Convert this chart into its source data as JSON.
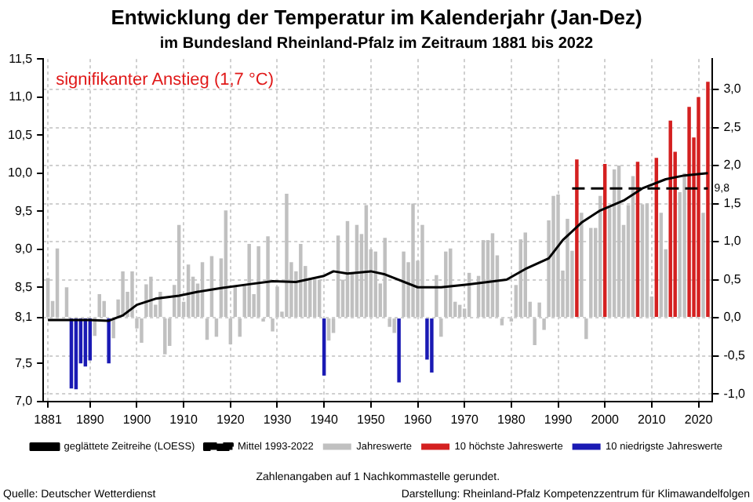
{
  "chart_data": {
    "type": "bar",
    "title": "Entwicklung der Temperatur im Kalenderjahr (Jan-Dez)",
    "subtitle": "im Bundesland Rheinland-Pfalz im Zeitraum 1881 bis 2022",
    "x": [
      1881,
      1882,
      1883,
      1884,
      1885,
      1886,
      1887,
      1888,
      1889,
      1890,
      1891,
      1892,
      1893,
      1894,
      1895,
      1896,
      1897,
      1898,
      1899,
      1900,
      1901,
      1902,
      1903,
      1904,
      1905,
      1906,
      1907,
      1908,
      1909,
      1910,
      1911,
      1912,
      1913,
      1914,
      1915,
      1916,
      1917,
      1918,
      1919,
      1920,
      1921,
      1922,
      1923,
      1924,
      1925,
      1926,
      1927,
      1928,
      1929,
      1930,
      1931,
      1932,
      1933,
      1934,
      1935,
      1936,
      1937,
      1938,
      1939,
      1940,
      1941,
      1942,
      1943,
      1944,
      1945,
      1946,
      1947,
      1948,
      1949,
      1950,
      1951,
      1952,
      1953,
      1954,
      1955,
      1956,
      1957,
      1958,
      1959,
      1960,
      1961,
      1962,
      1963,
      1964,
      1965,
      1966,
      1967,
      1968,
      1969,
      1970,
      1971,
      1972,
      1973,
      1974,
      1975,
      1976,
      1977,
      1978,
      1979,
      1980,
      1981,
      1982,
      1983,
      1984,
      1985,
      1986,
      1987,
      1988,
      1989,
      1990,
      1991,
      1992,
      1993,
      1994,
      1995,
      1996,
      1997,
      1998,
      1999,
      2000,
      2001,
      2002,
      2003,
      2004,
      2005,
      2006,
      2007,
      2008,
      2009,
      2010,
      2011,
      2012,
      2013,
      2014,
      2015,
      2016,
      2017,
      2018,
      2019,
      2020,
      2021
    ],
    "series": [
      {
        "name": "Jahreswerte",
        "color": "#c0c0c0",
        "values": [
          0.52,
          0.22,
          0.91,
          0.0,
          0.4,
          null,
          null,
          null,
          null,
          null,
          -0.24,
          0.31,
          0.22,
          null,
          -0.27,
          0.24,
          0.61,
          0.34,
          0.61,
          -0.14,
          -0.33,
          0.44,
          0.54,
          0.17,
          0.34,
          -0.48,
          -0.37,
          0.43,
          1.22,
          0.21,
          0.7,
          0.54,
          0.45,
          0.73,
          -0.29,
          0.81,
          -0.25,
          0.78,
          1.41,
          -0.35,
          0.42,
          -0.25,
          0.42,
          0.97,
          0.31,
          0.94,
          -0.05,
          1.07,
          -0.18,
          0.41,
          0.08,
          1.63,
          0.73,
          0.61,
          0.97,
          0.68,
          0.52,
          0.5,
          0.5,
          null,
          -0.3,
          -0.2,
          1.08,
          0.5,
          1.27,
          0.6,
          1.22,
          1.1,
          1.48,
          0.9,
          0.87,
          0.45,
          1.05,
          -0.12,
          -0.2,
          null,
          0.87,
          0.73,
          1.5,
          0.75,
          1.22,
          null,
          null,
          0.56,
          -0.25,
          0.87,
          0.91,
          0.21,
          0.17,
          0.12,
          0.59,
          -0.01,
          0.55,
          1.02,
          1.02,
          1.11,
          0.82,
          -0.1,
          null,
          -0.05,
          0.43,
          1.03,
          1.12,
          0.21,
          -0.36,
          0.2,
          -0.16,
          1.28,
          1.6,
          1.62,
          0.62,
          1.3,
          0.88,
          null,
          1.38,
          -0.28,
          1.18,
          1.18,
          1.6,
          null,
          1.45,
          1.95,
          2.0,
          1.22,
          1.48,
          1.86,
          null,
          1.49,
          1.5,
          0.28,
          null,
          1.38,
          0.9,
          null,
          null,
          1.65,
          1.9,
          null,
          null,
          null,
          1.38
        ]
      },
      {
        "name": "10 höchste Jahreswerte",
        "color": "#d42020",
        "x": [
          1994,
          2000,
          2007,
          2011,
          2014,
          2015,
          2018,
          2019,
          2020,
          2022
        ],
        "values": [
          2.08,
          2.02,
          2.05,
          2.1,
          2.59,
          2.18,
          2.77,
          2.37,
          2.9,
          3.1
        ]
      },
      {
        "name": "10 niedrigste Jahreswerte",
        "color": "#1a1ab4",
        "x": [
          1886,
          1887,
          1888,
          1889,
          1890,
          1894,
          1940,
          1956,
          1962,
          1963
        ],
        "values": [
          -0.93,
          -0.94,
          -0.6,
          -0.64,
          -0.56,
          -0.6,
          -0.76,
          -0.85,
          -0.55,
          -0.72
        ]
      },
      {
        "name": "geglättete Zeitreihe (LOESS)",
        "type": "line",
        "color": "#000000",
        "line_style": "solid",
        "x": [
          1881,
          1890,
          1894,
          1897,
          1900,
          1904,
          1909,
          1913,
          1918,
          1924,
          1929,
          1934,
          1940,
          1942,
          1945,
          1950,
          1953,
          1960,
          1965,
          1971,
          1979,
          1983,
          1988,
          1991,
          1995,
          1999,
          2004,
          2008,
          2013,
          2017,
          2022
        ],
        "values": [
          -0.03,
          -0.03,
          -0.04,
          0.03,
          0.17,
          0.25,
          0.29,
          0.34,
          0.39,
          0.44,
          0.48,
          0.47,
          0.55,
          0.61,
          0.58,
          0.61,
          0.57,
          0.4,
          0.4,
          0.44,
          0.5,
          0.64,
          0.78,
          1.02,
          1.25,
          1.41,
          1.54,
          1.7,
          1.82,
          1.87,
          1.9
        ]
      },
      {
        "name": "Mittel 1993-2022",
        "type": "line",
        "color": "#000000",
        "line_style": "dashed",
        "x": [
          1993,
          2022
        ],
        "values": [
          1.7,
          1.7
        ]
      }
    ],
    "xlim": [
      1880,
      2023
    ],
    "xticks": [
      1881,
      1890,
      1900,
      1910,
      1920,
      1930,
      1940,
      1950,
      1960,
      1970,
      1980,
      1990,
      2000,
      2010,
      2020
    ],
    "ylim": [
      -1.1,
      3.4
    ],
    "yticks": [
      {
        "value": -1,
        "label": "-1,0"
      },
      {
        "value": -0.5,
        "label": "-0,5"
      },
      {
        "value": 0,
        "label": "0,0"
      },
      {
        "value": 0.5,
        "label": "0,5"
      },
      {
        "value": 1,
        "label": "1,0"
      },
      {
        "value": 1.5,
        "label": "1,5"
      },
      {
        "value": 2,
        "label": "2,0"
      },
      {
        "value": 2.5,
        "label": "2,5"
      },
      {
        "value": 3,
        "label": "3,0"
      }
    ],
    "y2lim": [
      7.0,
      11.5
    ],
    "y2ticks": [
      {
        "value": 7,
        "label": "7,0"
      },
      {
        "value": 7.5,
        "label": "7,5"
      },
      {
        "value": 8.1,
        "label": "8,1"
      },
      {
        "value": 8.5,
        "label": "8,5"
      },
      {
        "value": 9,
        "label": "9,0"
      },
      {
        "value": 9.5,
        "label": "9,5"
      },
      {
        "value": 10,
        "label": "10,0"
      },
      {
        "value": 10.5,
        "label": "10,5"
      },
      {
        "value": 11,
        "label": "11,0"
      },
      {
        "value": 11.5,
        "label": "11,5"
      }
    ],
    "marker": "none",
    "grid": true,
    "legend": "bottom",
    "annotations": [
      "signifikanter Anstieg (1,7 °C)",
      {
        "text": "9,8",
        "x": 2022,
        "y": 1.7
      },
      "Zahlenangaben auf 1 Nachkommastelle gerundet.",
      "Quelle: Deutscher Wetterdienst",
      "Darstellung: Rheinland-Pfalz Kompetenzzentrum für Klimawandelfolgen"
    ]
  }
}
